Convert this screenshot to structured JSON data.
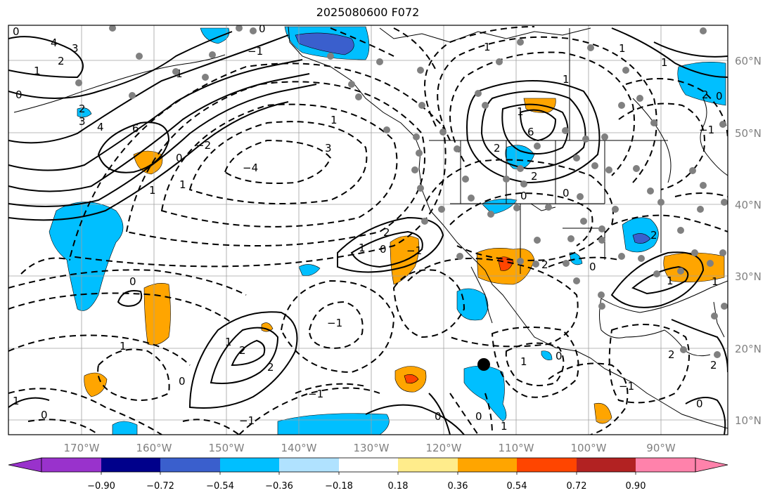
{
  "title": "2025080600 F072",
  "lon_ticks": [
    "170°W",
    "160°W",
    "150°W",
    "140°W",
    "130°W",
    "120°W",
    "110°W",
    "100°W",
    "90°W"
  ],
  "lat_ticks": [
    "60°N",
    "50°N",
    "40°N",
    "30°N",
    "20°N",
    "10°N"
  ],
  "colorbar": {
    "labels": [
      "−0.90",
      "−0.72",
      "−0.54",
      "−0.36",
      "−0.18",
      "0.18",
      "0.36",
      "0.54",
      "0.72",
      "0.90"
    ],
    "colors": [
      "#9932cc",
      "#00008b",
      "#3a5fcd",
      "#00bfff",
      "#b0e2ff",
      "#ffffff",
      "#ffec8b",
      "#ffa500",
      "#ff4500",
      "#b22222",
      "#ff82ab"
    ]
  },
  "contour_labels": [
    "4",
    "3",
    "2",
    "1",
    "0",
    "2",
    "3",
    "4",
    "6",
    "1",
    "−2",
    "3",
    "1",
    "−4",
    "1",
    "−1",
    "2",
    "1",
    "6",
    "1",
    "2",
    "0",
    "1",
    "2",
    "0",
    "2",
    "1",
    "0",
    "−1",
    "1",
    "2",
    "0",
    "−1",
    "0",
    "1",
    "0",
    "−1",
    "1",
    "0",
    "1",
    "2",
    "0",
    "2",
    "1",
    "1",
    "1",
    "1",
    "2",
    "2",
    "2",
    "0",
    "1",
    "1",
    "−1",
    "0",
    "0",
    "0",
    "−1",
    "0",
    "0",
    "0",
    "−1"
  ],
  "fill_colors": {
    "cyan": "#00bfff",
    "orange": "#ffa500",
    "red": "#ff4500",
    "blue": "#3a5fcd",
    "black": "#000000",
    "gray": "#808080"
  }
}
